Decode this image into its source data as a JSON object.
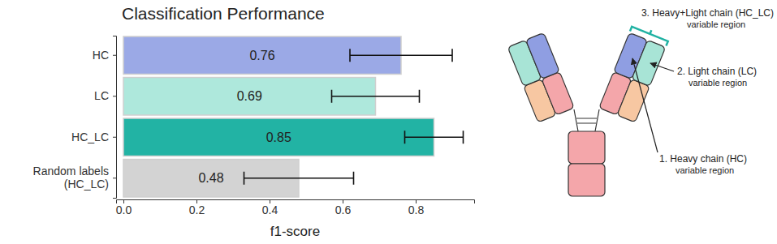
{
  "chart_data": {
    "type": "bar",
    "orientation": "horizontal",
    "title": "Classification Performance",
    "categories": [
      "HC",
      "LC",
      "HC_LC",
      "Random labels\n(HC_LC)"
    ],
    "values": [
      0.76,
      0.69,
      0.85,
      0.48
    ],
    "error": [
      0.14,
      0.12,
      0.08,
      0.15
    ],
    "colors": [
      "#9ba9e6",
      "#aee8dc",
      "#22b3a4",
      "#d3d3d3"
    ],
    "data_labels": true,
    "x_label": "f1-score",
    "xlim": [
      -0.02,
      0.96
    ],
    "xticks": [
      {
        "value": 0,
        "label": "0.0"
      },
      0.2,
      0.4,
      0.6,
      0.8
    ]
  },
  "diagram": {
    "labels": [
      {
        "title": "3. Heavy+Light chain (HC_LC)",
        "subtitle": "variable region"
      },
      {
        "title": "2. Light chain (LC)",
        "subtitle": "variable region"
      },
      {
        "title": "1. Heavy chain (HC)",
        "subtitle": "variable region"
      }
    ]
  }
}
